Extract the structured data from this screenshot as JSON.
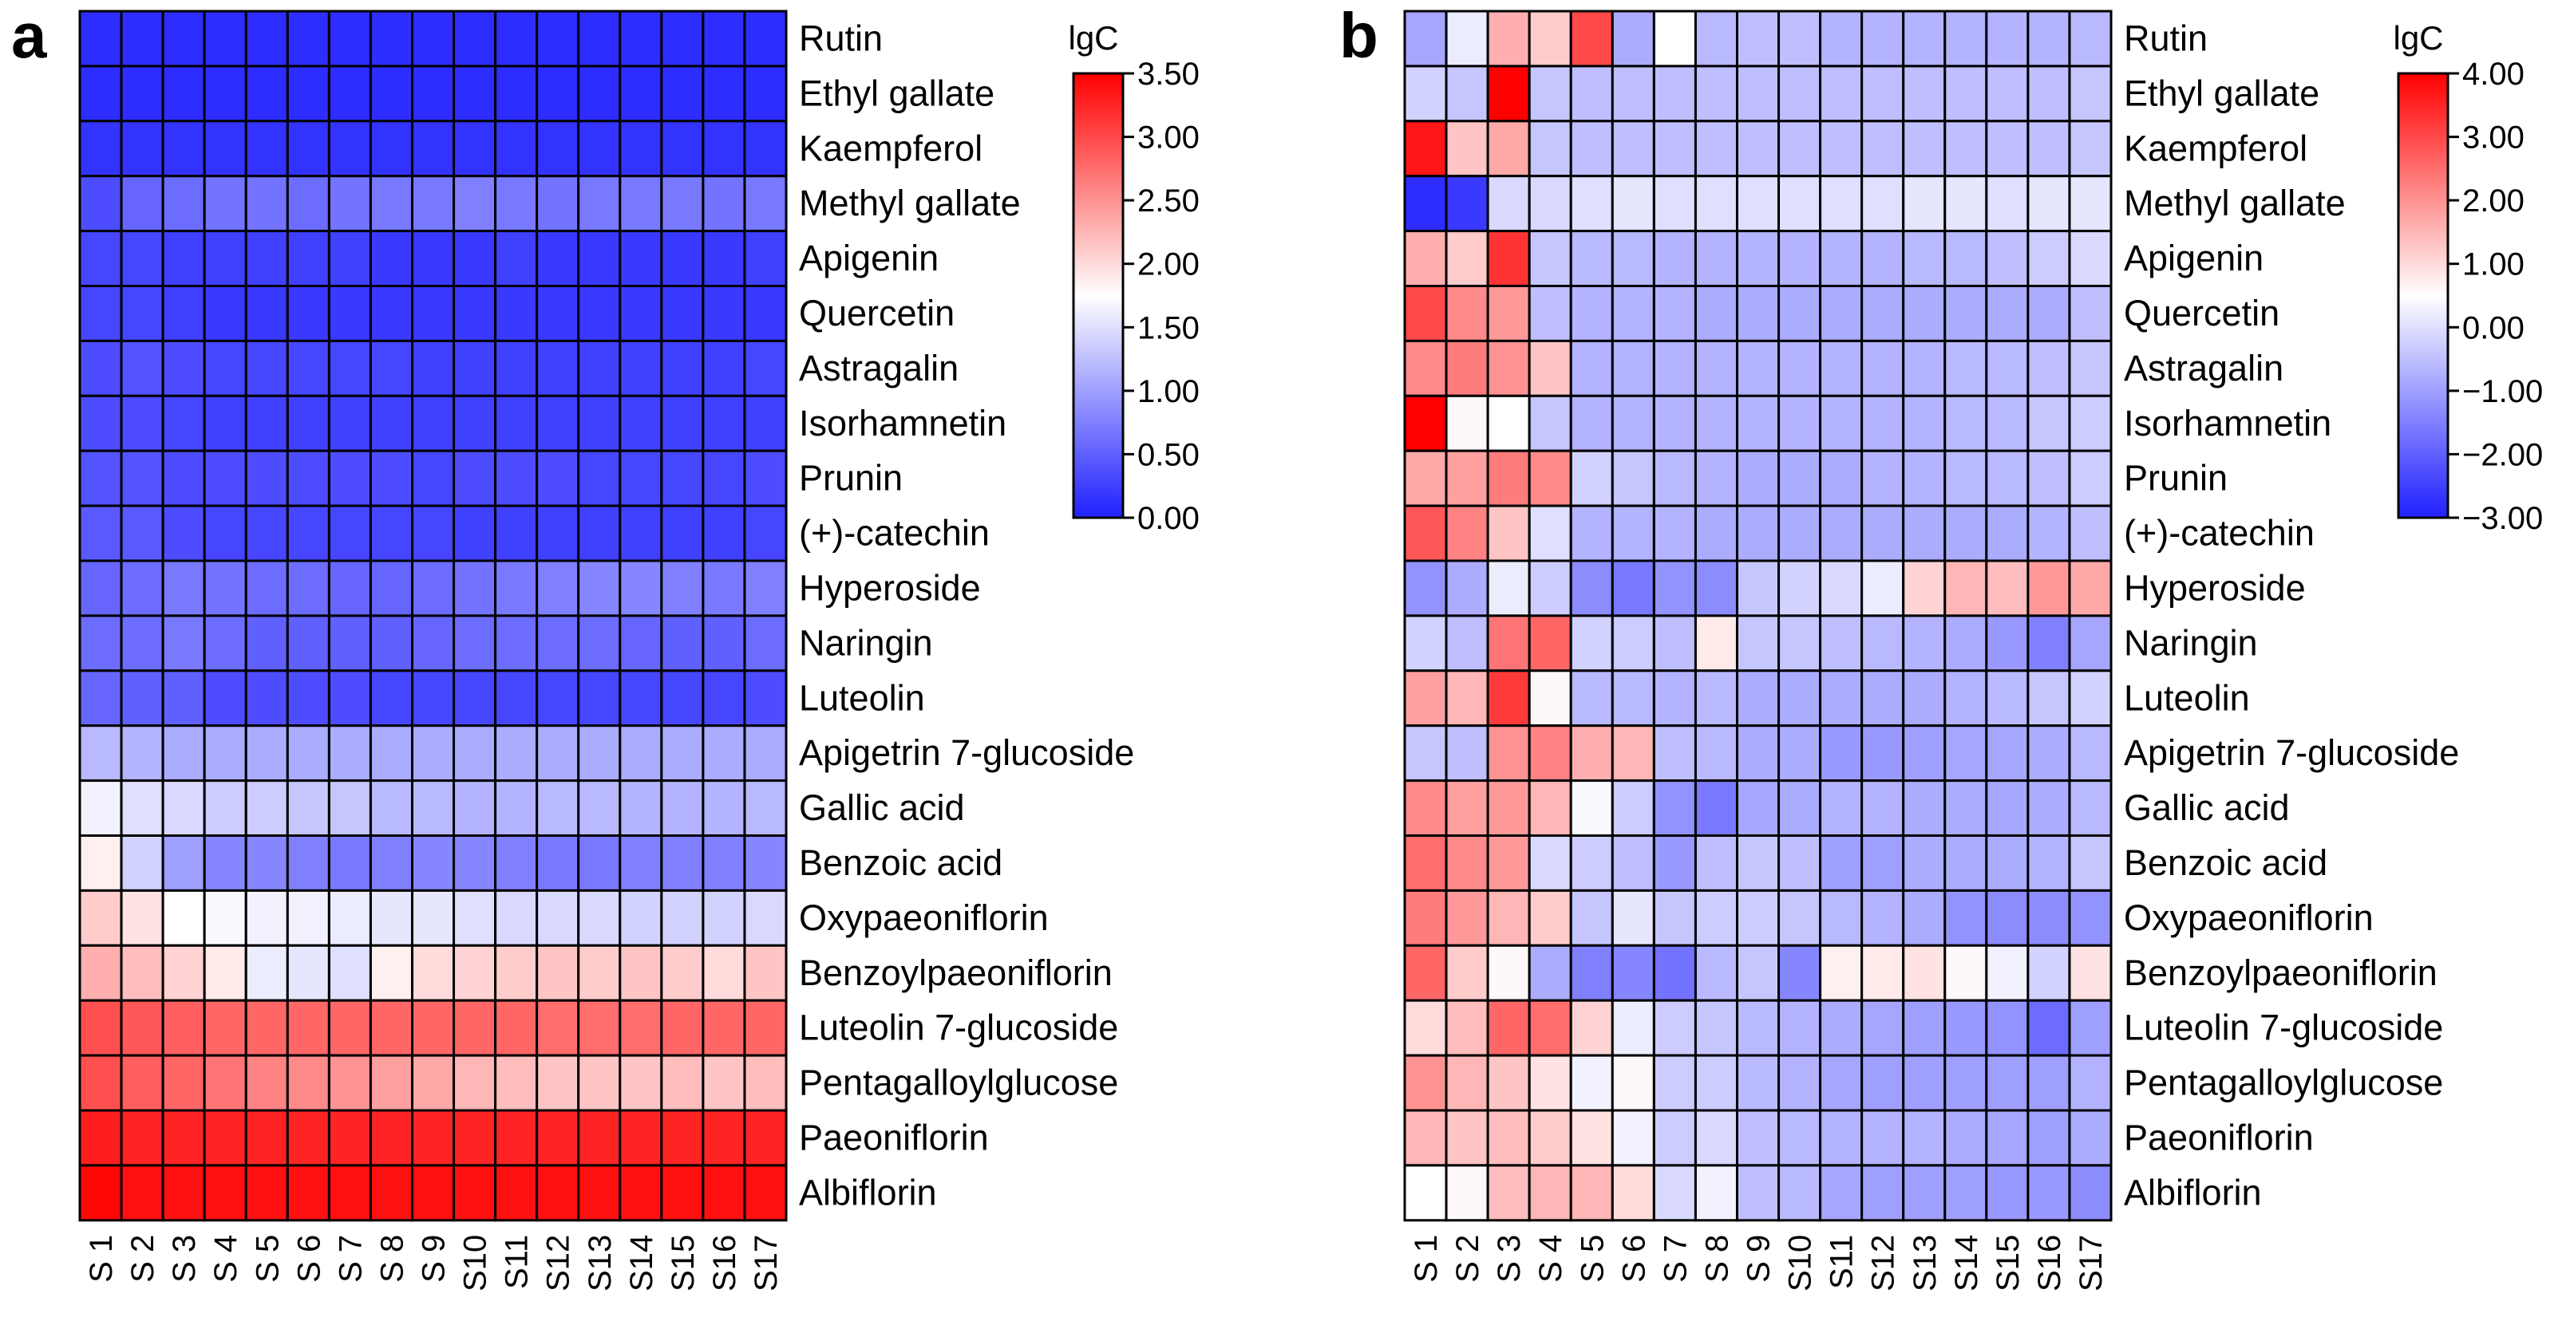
{
  "chart_data": [
    {
      "panel_label": "a",
      "type": "heatmap",
      "columns": [
        "S 1",
        "S 2",
        "S 3",
        "S 4",
        "S 5",
        "S 6",
        "S 7",
        "S 8",
        "S 9",
        "S10",
        "S11",
        "S12",
        "S13",
        "S14",
        "S15",
        "S16",
        "S17"
      ],
      "rows": [
        "Rutin",
        "Ethyl gallate",
        "Kaempferol",
        "Methyl gallate",
        "Apigenin",
        "Quercetin",
        "Astragalin",
        "Isorhamnetin",
        "Prunin",
        "(+)-catechin",
        "Hyperoside",
        "Naringin",
        "Luteolin",
        "Apigetrin 7-glucoside",
        "Gallic  acid",
        "Benzoic acid",
        "Oxypaeoniflorin",
        "Benzoylpaeoniflorin",
        "Luteolin 7-glucoside",
        "Pentagalloylglucose",
        "Paeoniflorin",
        "Albiflorin"
      ],
      "colorbar": {
        "title": "lgC",
        "min": 0.0,
        "max": 3.5,
        "center": 1.75,
        "ticks": [
          "0.00",
          "0.50",
          "1.00",
          "1.50",
          "2.00",
          "2.50",
          "3.00",
          "3.50"
        ]
      },
      "colors": {
        "low": "#2020ff",
        "mid": "#ffffff",
        "high": "#ff0000"
      },
      "values": [
        [
          0.1,
          0.1,
          0.1,
          0.1,
          0.1,
          0.1,
          0.1,
          0.1,
          0.1,
          0.1,
          0.1,
          0.1,
          0.1,
          0.1,
          0.1,
          0.1,
          0.1
        ],
        [
          0.1,
          0.1,
          0.1,
          0.1,
          0.1,
          0.1,
          0.1,
          0.1,
          0.1,
          0.1,
          0.1,
          0.1,
          0.1,
          0.1,
          0.1,
          0.1,
          0.1
        ],
        [
          0.15,
          0.15,
          0.15,
          0.15,
          0.15,
          0.15,
          0.15,
          0.15,
          0.15,
          0.15,
          0.15,
          0.15,
          0.15,
          0.15,
          0.15,
          0.15,
          0.15
        ],
        [
          0.35,
          0.55,
          0.6,
          0.65,
          0.65,
          0.6,
          0.65,
          0.7,
          0.7,
          0.75,
          0.7,
          0.65,
          0.7,
          0.7,
          0.7,
          0.65,
          0.7
        ],
        [
          0.3,
          0.3,
          0.25,
          0.25,
          0.25,
          0.25,
          0.25,
          0.2,
          0.2,
          0.2,
          0.25,
          0.2,
          0.2,
          0.2,
          0.2,
          0.2,
          0.25
        ],
        [
          0.3,
          0.3,
          0.25,
          0.2,
          0.2,
          0.2,
          0.2,
          0.2,
          0.2,
          0.2,
          0.2,
          0.2,
          0.2,
          0.2,
          0.2,
          0.2,
          0.2
        ],
        [
          0.35,
          0.4,
          0.35,
          0.3,
          0.3,
          0.3,
          0.3,
          0.3,
          0.25,
          0.25,
          0.25,
          0.25,
          0.25,
          0.25,
          0.25,
          0.25,
          0.3
        ],
        [
          0.35,
          0.35,
          0.3,
          0.25,
          0.25,
          0.25,
          0.25,
          0.25,
          0.25,
          0.25,
          0.25,
          0.25,
          0.25,
          0.25,
          0.25,
          0.25,
          0.25
        ],
        [
          0.4,
          0.4,
          0.35,
          0.35,
          0.35,
          0.35,
          0.35,
          0.35,
          0.3,
          0.35,
          0.35,
          0.35,
          0.3,
          0.3,
          0.3,
          0.3,
          0.35
        ],
        [
          0.45,
          0.45,
          0.35,
          0.3,
          0.3,
          0.3,
          0.3,
          0.3,
          0.3,
          0.25,
          0.25,
          0.25,
          0.25,
          0.25,
          0.25,
          0.25,
          0.3
        ],
        [
          0.55,
          0.6,
          0.7,
          0.65,
          0.6,
          0.6,
          0.55,
          0.55,
          0.6,
          0.65,
          0.7,
          0.75,
          0.8,
          0.8,
          0.75,
          0.7,
          0.75
        ],
        [
          0.6,
          0.6,
          0.7,
          0.6,
          0.5,
          0.5,
          0.5,
          0.5,
          0.55,
          0.6,
          0.6,
          0.6,
          0.6,
          0.55,
          0.5,
          0.5,
          0.6
        ],
        [
          0.55,
          0.5,
          0.5,
          0.35,
          0.35,
          0.35,
          0.35,
          0.3,
          0.3,
          0.3,
          0.3,
          0.3,
          0.3,
          0.3,
          0.3,
          0.3,
          0.35
        ],
        [
          1.2,
          1.15,
          1.1,
          1.1,
          1.1,
          1.1,
          1.1,
          1.1,
          1.1,
          1.1,
          1.1,
          1.1,
          1.1,
          1.1,
          1.1,
          1.1,
          1.1
        ],
        [
          1.65,
          1.5,
          1.45,
          1.35,
          1.35,
          1.3,
          1.3,
          1.2,
          1.2,
          1.15,
          1.15,
          1.2,
          1.2,
          1.15,
          1.15,
          1.15,
          1.2
        ],
        [
          1.85,
          1.4,
          1.0,
          0.8,
          0.8,
          0.75,
          0.7,
          0.75,
          0.8,
          0.8,
          0.75,
          0.7,
          0.7,
          0.75,
          0.75,
          0.75,
          0.8
        ],
        [
          2.1,
          1.95,
          1.75,
          1.7,
          1.65,
          1.65,
          1.6,
          1.55,
          1.55,
          1.5,
          1.45,
          1.45,
          1.45,
          1.4,
          1.4,
          1.4,
          1.45
        ],
        [
          2.3,
          2.2,
          2.05,
          1.9,
          1.6,
          1.55,
          1.5,
          1.85,
          2.0,
          2.05,
          2.1,
          2.15,
          2.1,
          2.15,
          2.1,
          2.0,
          2.15
        ],
        [
          2.95,
          2.9,
          2.85,
          2.8,
          2.8,
          2.8,
          2.8,
          2.8,
          2.8,
          2.8,
          2.8,
          2.75,
          2.75,
          2.75,
          2.8,
          2.8,
          2.8
        ],
        [
          2.95,
          2.85,
          2.8,
          2.7,
          2.6,
          2.55,
          2.5,
          2.4,
          2.35,
          2.25,
          2.2,
          2.15,
          2.15,
          2.15,
          2.2,
          2.15,
          2.2
        ],
        [
          3.3,
          3.25,
          3.25,
          3.25,
          3.25,
          3.25,
          3.25,
          3.25,
          3.25,
          3.25,
          3.25,
          3.25,
          3.25,
          3.25,
          3.25,
          3.25,
          3.25
        ],
        [
          3.45,
          3.4,
          3.4,
          3.4,
          3.4,
          3.4,
          3.4,
          3.4,
          3.4,
          3.4,
          3.4,
          3.4,
          3.4,
          3.4,
          3.4,
          3.4,
          3.4
        ]
      ]
    },
    {
      "panel_label": "b",
      "type": "heatmap",
      "columns": [
        "S 1",
        "S 2",
        "S 3",
        "S 4",
        "S 5",
        "S 6",
        "S 7",
        "S 8",
        "S 9",
        "S10",
        "S11",
        "S12",
        "S13",
        "S14",
        "S15",
        "S16",
        "S17"
      ],
      "rows": [
        "Rutin",
        "Ethyl gallate",
        "Kaempferol",
        "Methyl gallate",
        "Apigenin",
        "Quercetin",
        "Astragalin",
        "Isorhamnetin",
        "Prunin",
        "(+)-catechin",
        "Hyperoside",
        "Naringin",
        "Luteolin",
        "Apigetrin 7-glucoside",
        "Gallic  acid",
        "Benzoic acid",
        "Oxypaeoniflorin",
        "Benzoylpaeoniflorin",
        "Luteolin 7-glucoside",
        "Pentagalloylglucose",
        "Paeoniflorin",
        "Albiflorin"
      ],
      "colorbar": {
        "title": "lgC",
        "min": -3.0,
        "max": 4.0,
        "center": 0.5,
        "ticks": [
          "−3.00",
          "−2.00",
          "−1.00",
          "0.00",
          "1.00",
          "2.00",
          "3.00",
          "4.00"
        ]
      },
      "colors": {
        "low": "#2020ff",
        "mid": "#ffffff",
        "high": "#ff0000"
      },
      "values": [
        [
          -0.9,
          0.2,
          1.6,
          1.2,
          3.0,
          -0.8,
          0.5,
          -0.6,
          -0.5,
          -0.5,
          -0.7,
          -0.7,
          -0.7,
          -0.7,
          -0.7,
          -0.7,
          -0.6
        ],
        [
          -0.2,
          -0.4,
          4.0,
          -0.4,
          -0.5,
          -0.5,
          -0.5,
          -0.5,
          -0.5,
          -0.5,
          -0.5,
          -0.5,
          -0.5,
          -0.5,
          -0.5,
          -0.5,
          -0.4
        ],
        [
          3.7,
          1.3,
          1.7,
          -0.4,
          -0.5,
          -0.5,
          -0.5,
          -0.5,
          -0.5,
          -0.5,
          -0.5,
          -0.5,
          -0.5,
          -0.5,
          -0.5,
          -0.5,
          -0.4
        ],
        [
          -2.8,
          -2.6,
          -0.1,
          -0.1,
          0.0,
          0.1,
          0.0,
          0.0,
          0.0,
          0.0,
          0.0,
          0.0,
          0.1,
          0.1,
          0.0,
          0.1,
          0.1
        ],
        [
          1.6,
          1.2,
          3.3,
          -0.4,
          -0.6,
          -0.6,
          -0.7,
          -0.7,
          -0.7,
          -0.7,
          -0.7,
          -0.7,
          -0.6,
          -0.6,
          -0.5,
          -0.3,
          -0.1
        ],
        [
          3.0,
          2.1,
          1.9,
          -0.5,
          -0.7,
          -0.7,
          -0.7,
          -0.8,
          -0.8,
          -0.8,
          -0.8,
          -0.8,
          -0.8,
          -0.8,
          -0.8,
          -0.8,
          -0.5
        ],
        [
          2.1,
          2.3,
          2.0,
          1.3,
          -0.7,
          -0.7,
          -0.7,
          -0.7,
          -0.7,
          -0.7,
          -0.7,
          -0.7,
          -0.7,
          -0.6,
          -0.6,
          -0.5,
          -0.4
        ],
        [
          4.0,
          0.6,
          0.5,
          -0.4,
          -0.7,
          -0.7,
          -0.7,
          -0.7,
          -0.7,
          -0.7,
          -0.7,
          -0.7,
          -0.7,
          -0.6,
          -0.6,
          -0.4,
          -0.3
        ],
        [
          1.7,
          1.8,
          2.3,
          2.1,
          -0.2,
          -0.4,
          -0.6,
          -0.7,
          -0.8,
          -0.8,
          -0.8,
          -0.7,
          -0.7,
          -0.6,
          -0.6,
          -0.5,
          -0.3
        ],
        [
          2.8,
          2.2,
          1.3,
          0.0,
          -0.7,
          -0.7,
          -0.7,
          -0.8,
          -0.8,
          -0.8,
          -0.8,
          -0.8,
          -0.8,
          -0.8,
          -0.8,
          -0.7,
          -0.5
        ],
        [
          -1.2,
          -0.8,
          0.2,
          -0.3,
          -1.3,
          -1.6,
          -1.2,
          -1.3,
          -0.4,
          -0.2,
          -0.1,
          0.2,
          1.1,
          1.5,
          1.4,
          1.9,
          1.7
        ],
        [
          -0.2,
          -0.5,
          2.4,
          2.6,
          -0.2,
          -0.3,
          -0.5,
          0.8,
          -0.4,
          -0.4,
          -0.5,
          -0.6,
          -0.7,
          -0.8,
          -1.1,
          -1.5,
          -0.9
        ],
        [
          1.8,
          1.5,
          3.2,
          0.6,
          -0.6,
          -0.6,
          -0.7,
          -0.6,
          -0.8,
          -0.8,
          -0.8,
          -0.8,
          -0.8,
          -0.7,
          -0.6,
          -0.4,
          -0.2
        ],
        [
          -0.4,
          -0.5,
          2.0,
          2.2,
          1.6,
          1.5,
          -0.5,
          -0.6,
          -0.8,
          -0.8,
          -1.1,
          -1.1,
          -1.0,
          -0.9,
          -0.9,
          -0.8,
          -0.6
        ],
        [
          2.1,
          1.8,
          1.9,
          1.5,
          0.4,
          -0.3,
          -1.2,
          -1.6,
          -0.9,
          -0.8,
          -0.7,
          -0.7,
          -0.8,
          -0.8,
          -0.9,
          -0.8,
          -0.6
        ],
        [
          2.5,
          2.1,
          1.9,
          -0.1,
          -0.3,
          -0.5,
          -1.1,
          -0.5,
          -0.4,
          -0.5,
          -1.0,
          -1.0,
          -0.8,
          -0.8,
          -0.8,
          -0.7,
          -0.4
        ],
        [
          2.3,
          1.9,
          1.5,
          1.2,
          -0.4,
          0.1,
          -0.4,
          -0.3,
          -0.3,
          -0.4,
          -0.6,
          -0.7,
          -0.8,
          -1.2,
          -1.3,
          -1.3,
          -1.2
        ],
        [
          2.6,
          1.2,
          0.6,
          -0.8,
          -1.5,
          -1.4,
          -1.7,
          -0.6,
          -0.4,
          -1.4,
          0.7,
          0.8,
          0.9,
          0.6,
          0.3,
          -0.2,
          0.9
        ],
        [
          1.0,
          1.4,
          2.6,
          2.5,
          1.1,
          0.2,
          -0.3,
          -0.4,
          -0.6,
          -0.7,
          -0.8,
          -0.9,
          -1.0,
          -1.1,
          -1.2,
          -1.8,
          -1.0
        ],
        [
          2.0,
          1.5,
          1.3,
          0.9,
          0.3,
          0.6,
          -0.3,
          -0.3,
          -0.6,
          -0.7,
          -0.9,
          -1.0,
          -1.0,
          -1.0,
          -1.0,
          -1.0,
          -0.7
        ],
        [
          1.5,
          1.3,
          1.4,
          1.2,
          0.9,
          0.3,
          -0.3,
          -0.1,
          -0.5,
          -0.6,
          -0.7,
          -0.7,
          -0.7,
          -0.8,
          -0.9,
          -1.0,
          -0.8
        ],
        [
          0.5,
          0.6,
          1.4,
          1.5,
          1.5,
          1.0,
          -0.1,
          0.3,
          -0.5,
          -0.6,
          -0.9,
          -1.0,
          -1.0,
          -1.0,
          -1.1,
          -1.1,
          -1.3
        ]
      ]
    }
  ]
}
